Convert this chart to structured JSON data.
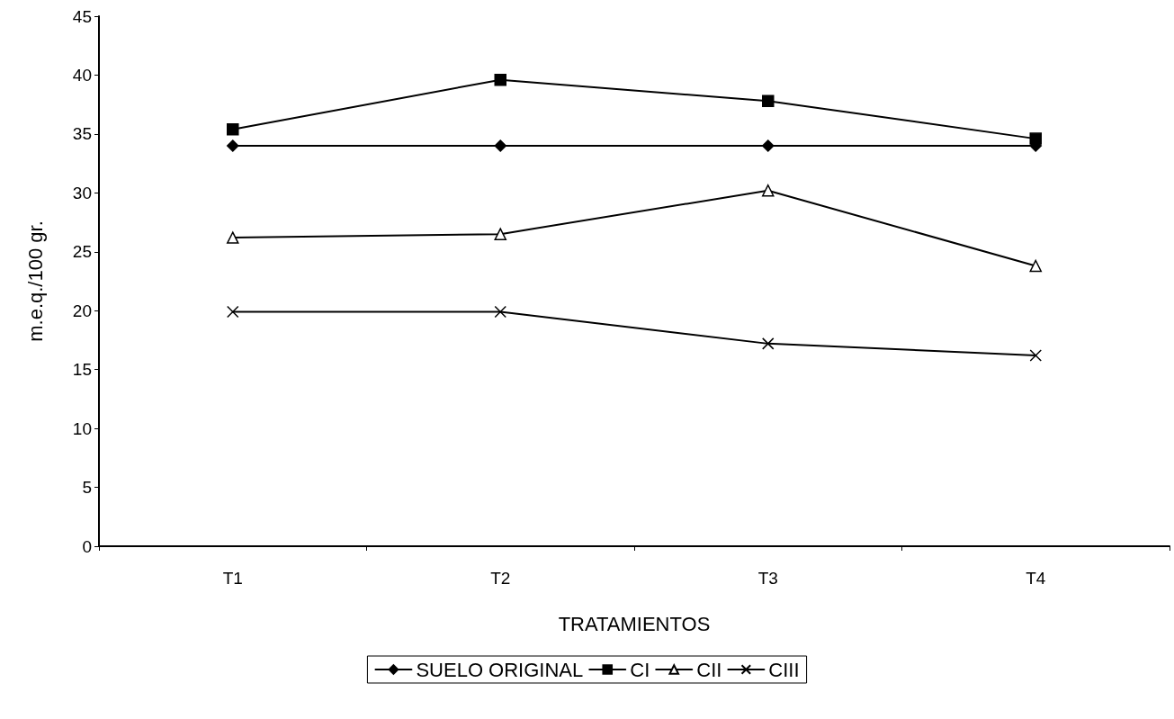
{
  "chart_data": {
    "type": "line",
    "xlabel": "TRATAMIENTOS",
    "ylabel": "m.e.q./100 gr.",
    "categories": [
      "T1",
      "T2",
      "T3",
      "T4"
    ],
    "series": [
      {
        "name": "SUELO ORIGINAL",
        "color": "#000000",
        "marker": "diamond",
        "values": [
          34,
          34,
          34,
          34
        ]
      },
      {
        "name": "CI",
        "color": "#000000",
        "marker": "square",
        "values": [
          35.4,
          39.6,
          37.8,
          34.6
        ]
      },
      {
        "name": "CII",
        "color": "#000000",
        "marker": "triangle",
        "values": [
          26.2,
          26.5,
          30.2,
          23.8
        ]
      },
      {
        "name": "CIII",
        "color": "#000000",
        "marker": "cross",
        "values": [
          19.9,
          19.9,
          17.2,
          16.2
        ]
      }
    ],
    "ylim": [
      0,
      45
    ],
    "yticks": [
      0,
      5,
      10,
      15,
      20,
      25,
      30,
      35,
      40,
      45
    ],
    "grid": false,
    "legend": "bottom",
    "line_style": "solid"
  }
}
